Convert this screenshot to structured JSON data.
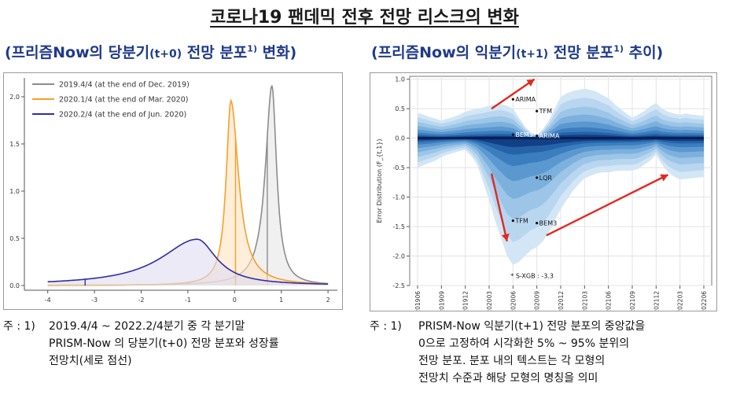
{
  "page": {
    "title": "코로나19 팬데믹 전후 전망 리스크의 변화",
    "left_subtitle_main": "(프리즘Now의 당분기",
    "left_subtitle_small": "(t+0)",
    "left_subtitle_rest": " 전망 분포",
    "left_subtitle_sup": "1)",
    "left_subtitle_end": " 변화)",
    "right_subtitle_main": "(프리즘Now의 익분기",
    "right_subtitle_small": "(t+1)",
    "right_subtitle_rest": " 전망 분포",
    "right_subtitle_sup": "1)",
    "right_subtitle_end": " 추이)",
    "left_note_label": "주 : 1)",
    "left_note_lines": [
      "2019.4/4 ~ 2022.2/4분기 중 각 분기말",
      "PRISM-Now 의 당분기(t+0) 전망 분포와 성장률",
      "전망치(세로 점선)"
    ],
    "right_note_label": "주 : 1)",
    "right_note_lines": [
      "PRISM-Now 익분기(t+1) 전망 분포의 중앙값을",
      "0으로 고정하여 시각화한 5% ~ 95% 분위의",
      "전망 분포. 분포 내의 텍스트는 각 모형의",
      "전망치 수준과 해당 모형의 명칭을 의미"
    ]
  },
  "chart_data": [
    {
      "type": "line",
      "xlim": [
        -4.5,
        2.2
      ],
      "ylim": [
        -0.05,
        2.2
      ],
      "x_ticks": [
        -4,
        -3,
        -2,
        -1,
        0,
        1,
        2
      ],
      "y_ticks": [
        0.0,
        0.5,
        1.0,
        1.5,
        2.0
      ],
      "x_tick_labels": [
        "-4",
        "-3",
        "-2",
        "-1",
        "0",
        "1",
        "2"
      ],
      "y_tick_labels": [
        "0.0",
        "0.5",
        "1.0",
        "1.5",
        "2.0"
      ],
      "legend_position": "top-left",
      "series": [
        {
          "name": "2019.4/4 (at the end of Dec. 2019)",
          "color": "#8c8c8c",
          "fill": "#e6e6e6",
          "peak_x": 0.8,
          "peak_y": 2.12,
          "width_left": 0.17,
          "width_right": 0.12,
          "forecast_x": 0.7
        },
        {
          "name": "2020.1/4 (at the end of Mar. 2020)",
          "color": "#f5a02a",
          "fill": "#fde2c2",
          "peak_x": -0.08,
          "peak_y": 1.96,
          "width_left": 0.12,
          "width_right": 0.2,
          "forecast_x": 0.02
        },
        {
          "name": "2020.2/4 (at the end of Jun. 2020)",
          "color": "#2e2ea8",
          "fill": "#dedcf0",
          "peak_x": -0.8,
          "peak_y": 0.49,
          "width_left": 0.95,
          "width_right": 0.5,
          "forecast_x": -3.2
        }
      ]
    },
    {
      "type": "area",
      "ylabel": "Error Distribution (F_{t,1})",
      "ylim": [
        -2.5,
        1.05
      ],
      "y_ticks": [
        1.0,
        0.5,
        0.0,
        -0.5,
        -1.0,
        -1.5,
        -2.0,
        -2.5
      ],
      "y_tick_labels": [
        "1.0",
        "0.5",
        "0.0",
        "-0.5",
        "-1.0",
        "-1.5",
        "-2.0",
        "-2.5"
      ],
      "categories": [
        "201906",
        "201909",
        "201912",
        "202003",
        "202006",
        "202009",
        "202012",
        "202103",
        "202106",
        "202109",
        "202112",
        "202203",
        "202206"
      ],
      "x_numeric": [
        0,
        0.25,
        0.5,
        0.75,
        1.0,
        1.25,
        1.5,
        1.75,
        2.0,
        2.25,
        2.5,
        2.75,
        3.0,
        3.25,
        3.5,
        3.75,
        4.0,
        4.25,
        4.5,
        4.75,
        5.0,
        5.25,
        5.5,
        5.75,
        6.0,
        6.25,
        6.5,
        6.75,
        7.0,
        7.25,
        7.5,
        7.75,
        8.0,
        8.25,
        8.5,
        8.75,
        9.0,
        9.25,
        9.5,
        9.75,
        10.0,
        10.25,
        10.5,
        10.75,
        11.0,
        11.25,
        11.5,
        11.75,
        12.0
      ],
      "upper": [
        0.43,
        0.4,
        0.36,
        0.33,
        0.3,
        0.33,
        0.36,
        0.4,
        0.45,
        0.48,
        0.5,
        0.52,
        0.55,
        0.57,
        0.58,
        0.55,
        0.5,
        0.35,
        0.2,
        0.1,
        0.05,
        0.15,
        0.3,
        0.5,
        0.7,
        0.76,
        0.8,
        0.82,
        0.84,
        0.82,
        0.79,
        0.73,
        0.68,
        0.58,
        0.5,
        0.42,
        0.35,
        0.4,
        0.46,
        0.54,
        0.6,
        0.5,
        0.45,
        0.42,
        0.4,
        0.42,
        0.4,
        0.39,
        0.38
      ],
      "lower": [
        -0.5,
        -0.46,
        -0.42,
        -0.38,
        -0.32,
        -0.28,
        -0.25,
        -0.22,
        -0.2,
        -0.3,
        -0.45,
        -0.75,
        -1.05,
        -1.4,
        -1.7,
        -2.0,
        -2.15,
        -2.1,
        -2.0,
        -1.9,
        -1.85,
        -1.75,
        -1.6,
        -1.4,
        -1.2,
        -1.05,
        -0.9,
        -0.78,
        -0.68,
        -0.64,
        -0.6,
        -0.58,
        -0.58,
        -0.56,
        -0.55,
        -0.55,
        -0.55,
        -0.52,
        -0.45,
        -0.38,
        -0.28,
        -0.45,
        -0.58,
        -0.65,
        -0.7,
        -0.69,
        -0.68,
        -0.67,
        -0.66
      ],
      "annotations": [
        {
          "text": "ARIMA",
          "x": 4.0,
          "y": 0.66
        },
        {
          "text": "TFM",
          "x": 5.0,
          "y": 0.46
        },
        {
          "text": "BEM3",
          "x": 4.0,
          "y": 0.06
        },
        {
          "text": "ARIMA",
          "x": 5.0,
          "y": 0.04
        },
        {
          "text": "LQR",
          "x": 5.0,
          "y": -0.67
        },
        {
          "text": "TFM",
          "x": 4.0,
          "y": -1.4
        },
        {
          "text": "BEM3",
          "x": 5.0,
          "y": -1.44
        },
        {
          "text": "* S-XGB : -3.3",
          "x": 3.9,
          "y": -2.33
        }
      ],
      "arrows": [
        {
          "from": [
            3.1,
            0.5
          ],
          "to": [
            4.9,
            1.0
          ]
        },
        {
          "from": [
            3.1,
            -0.6
          ],
          "to": [
            3.75,
            -1.75
          ]
        },
        {
          "from": [
            5.4,
            -1.65
          ],
          "to": [
            10.5,
            -0.62
          ]
        }
      ]
    }
  ]
}
